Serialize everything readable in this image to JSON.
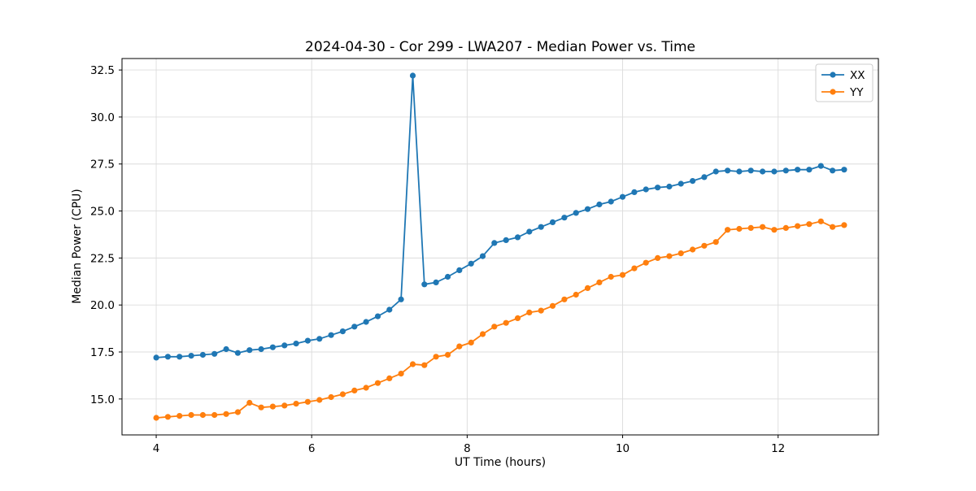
{
  "title": "2024-04-30 - Cor 299 - LWA207 - Median Power vs. Time",
  "chart_data": {
    "type": "line",
    "title": "2024-04-30 - Cor 299 - LWA207 - Median Power vs. Time",
    "xlabel": "UT Time (hours)",
    "ylabel": "Median Power (CPU)",
    "xlim": [
      3.56,
      13.29
    ],
    "ylim": [
      13.09,
      33.11
    ],
    "xticks": [
      4,
      6,
      8,
      10,
      12
    ],
    "xticklabels": [
      "4",
      "6",
      "8",
      "10",
      "12"
    ],
    "yticks": [
      15.0,
      17.5,
      20.0,
      22.5,
      25.0,
      27.5,
      30.0,
      32.5
    ],
    "yticklabels": [
      "15.0",
      "17.5",
      "20.0",
      "22.5",
      "25.0",
      "27.5",
      "30.0",
      "32.5"
    ],
    "grid": true,
    "grid_color": "#dcdcdc",
    "legend_position": "upper right",
    "x": [
      4.0,
      4.15,
      4.3,
      4.45,
      4.6,
      4.75,
      4.9,
      5.05,
      5.2,
      5.35,
      5.5,
      5.65,
      5.8,
      5.95,
      6.1,
      6.25,
      6.4,
      6.55,
      6.7,
      6.85,
      7.0,
      7.15,
      7.3,
      7.45,
      7.6,
      7.75,
      7.9,
      8.05,
      8.2,
      8.35,
      8.5,
      8.65,
      8.8,
      8.95,
      9.1,
      9.25,
      9.4,
      9.55,
      9.7,
      9.85,
      10.0,
      10.15,
      10.3,
      10.45,
      10.6,
      10.75,
      10.9,
      11.05,
      11.2,
      11.35,
      11.5,
      11.65,
      11.8,
      11.95,
      12.1,
      12.25,
      12.4,
      12.55,
      12.7,
      12.85
    ],
    "series": [
      {
        "name": "XX",
        "color": "#1f77b4",
        "values": [
          17.2,
          17.25,
          17.25,
          17.3,
          17.35,
          17.4,
          17.65,
          17.45,
          17.6,
          17.65,
          17.75,
          17.85,
          17.95,
          18.1,
          18.2,
          18.4,
          18.6,
          18.85,
          19.1,
          19.4,
          19.75,
          20.3,
          32.2,
          21.1,
          21.2,
          21.5,
          21.85,
          22.2,
          22.6,
          23.3,
          23.45,
          23.6,
          23.9,
          24.15,
          24.4,
          24.65,
          24.9,
          25.1,
          25.35,
          25.5,
          25.75,
          26.0,
          26.15,
          26.25,
          26.3,
          26.45,
          26.6,
          26.8,
          27.1,
          27.15,
          27.1,
          27.15,
          27.1,
          27.1,
          27.15,
          27.2,
          27.2,
          27.4,
          27.15,
          27.2
        ]
      },
      {
        "name": "YY",
        "color": "#ff7f0e",
        "values": [
          14.0,
          14.05,
          14.1,
          14.15,
          14.15,
          14.15,
          14.2,
          14.3,
          14.8,
          14.55,
          14.6,
          14.65,
          14.75,
          14.85,
          14.95,
          15.1,
          15.25,
          15.45,
          15.6,
          15.85,
          16.1,
          16.35,
          16.85,
          16.8,
          17.25,
          17.35,
          17.8,
          18.0,
          18.45,
          18.85,
          19.05,
          19.3,
          19.6,
          19.7,
          19.95,
          20.3,
          20.55,
          20.9,
          21.2,
          21.5,
          21.6,
          21.95,
          22.25,
          22.5,
          22.6,
          22.75,
          22.95,
          23.15,
          23.35,
          24.0,
          24.05,
          24.1,
          24.15,
          24.0,
          24.1,
          24.2,
          24.3,
          24.45,
          24.15,
          24.25
        ]
      }
    ]
  }
}
